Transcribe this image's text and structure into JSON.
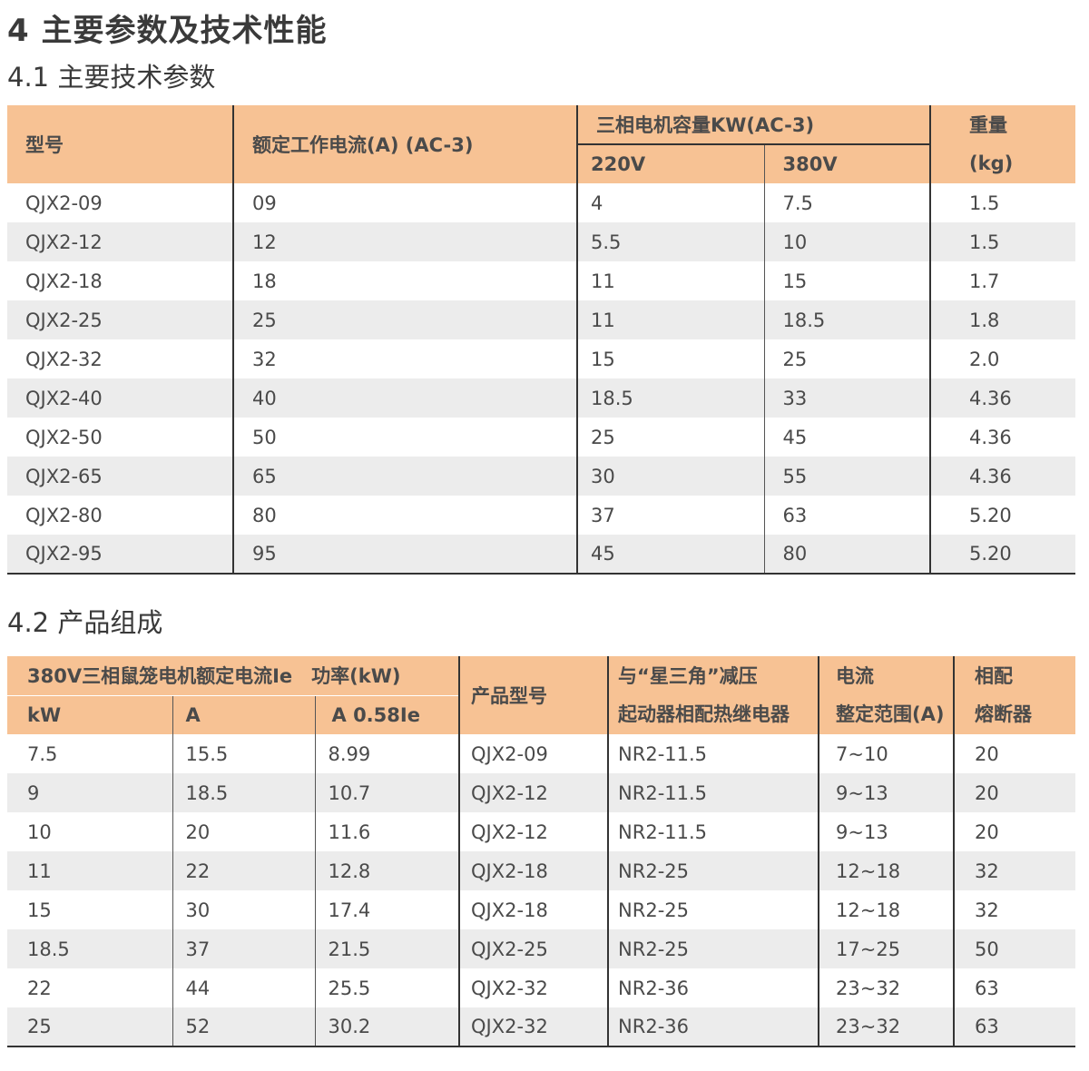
{
  "heading": "4 主要参数及技术性能",
  "section_params": {
    "title": "4.1 主要技术参数",
    "headers": {
      "model": "型号",
      "current": "额定工作电流(A) (AC-3)",
      "motor_capacity": "三相电机容量KW(AC-3)",
      "v220": "220V",
      "v380": "380V",
      "weight_line1": "重量",
      "weight_line2": "(kg)"
    },
    "rows": [
      [
        "QJX2-09",
        "09",
        "4",
        "7.5",
        "1.5"
      ],
      [
        "QJX2-12",
        "12",
        "5.5",
        "10",
        "1.5"
      ],
      [
        "QJX2-18",
        "18",
        "11",
        "15",
        "1.7"
      ],
      [
        "QJX2-25",
        "25",
        "11",
        "18.5",
        "1.8"
      ],
      [
        "QJX2-32",
        "32",
        "15",
        "25",
        "2.0"
      ],
      [
        "QJX2-40",
        "40",
        "18.5",
        "33",
        "4.36"
      ],
      [
        "QJX2-50",
        "50",
        "25",
        "45",
        "4.36"
      ],
      [
        "QJX2-65",
        "65",
        "30",
        "55",
        "4.36"
      ],
      [
        "QJX2-80",
        "80",
        "37",
        "63",
        "5.20"
      ],
      [
        "QJX2-95",
        "95",
        "45",
        "80",
        "5.20"
      ]
    ]
  },
  "section_comp": {
    "title": "4.2 产品组成",
    "headers": {
      "motor_group": "380V三相鼠笼电机额定电流Ie　功率(kW)",
      "kw": "kW",
      "a": "A",
      "a058": "A  0.58Ie",
      "product_model": "产品型号",
      "relay_line1": "与“星三角”减压",
      "relay_line2": "起动器相配热继电器",
      "range_line1": "电流",
      "range_line2": "整定范围(A)",
      "fuse_line1": "相配",
      "fuse_line2": "熔断器"
    },
    "rows": [
      [
        "7.5",
        "15.5",
        "8.99",
        "QJX2-09",
        "NR2-11.5",
        "7~10",
        "20"
      ],
      [
        "9",
        "18.5",
        "10.7",
        "QJX2-12",
        "NR2-11.5",
        "9~13",
        "20"
      ],
      [
        "10",
        "20",
        "11.6",
        "QJX2-12",
        "NR2-11.5",
        "9~13",
        "20"
      ],
      [
        "11",
        "22",
        "12.8",
        "QJX2-18",
        "NR2-25",
        "12~18",
        "32"
      ],
      [
        "15",
        "30",
        "17.4",
        "QJX2-18",
        "NR2-25",
        "12~18",
        "32"
      ],
      [
        "18.5",
        "37",
        "21.5",
        "QJX2-25",
        "NR2-25",
        "17~25",
        "50"
      ],
      [
        "22",
        "44",
        "25.5",
        "QJX2-32",
        "NR2-36",
        "23~32",
        "63"
      ],
      [
        "25",
        "52",
        "30.2",
        "QJX2-32",
        "NR2-36",
        "23~32",
        "63"
      ]
    ]
  }
}
